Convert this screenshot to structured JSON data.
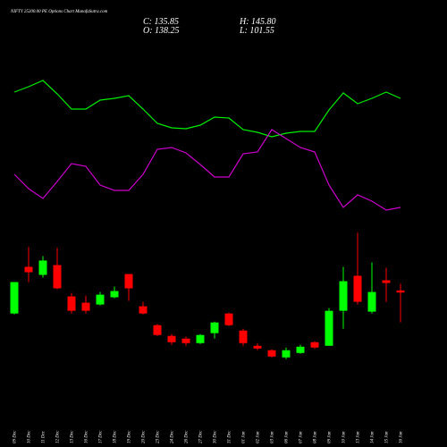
{
  "chart_data": {
    "type": "candlestick",
    "title": "NIFTY 25200.00 PE Options Chart MunafaSutra.com",
    "ohlc_labels": {
      "close": "C: 135.85",
      "high": "H: 145.80",
      "open": "O: 138.25",
      "low": "L: 101.55"
    },
    "categories": [
      "09 Dec",
      "10 Dec",
      "11 Dec",
      "12 Dec",
      "13 Dec",
      "16 Dec",
      "17 Dec",
      "18 Dec",
      "19 Dec",
      "20 Dec",
      "23 Dec",
      "24 Dec",
      "26 Dec",
      "27 Dec",
      "30 Dec",
      "31 Dec",
      "01 Jan",
      "02 Jan",
      "03 Jan",
      "06 Jan",
      "07 Jan",
      "08 Jan",
      "09 Jan",
      "10 Jan",
      "13 Jan",
      "14 Jan",
      "15 Jan",
      "16 Jan"
    ],
    "open": [
      111.8,
      165.4,
      156.1,
      167.4,
      131.4,
      124.2,
      122.1,
      130.4,
      157.1,
      120.1,
      98.4,
      86.1,
      83.0,
      77.8,
      89.2,
      111.8,
      92.2,
      74.7,
      69.6,
      61.4,
      66.5,
      78.8,
      74.7,
      114.9,
      155.1,
      113.9,
      149.9,
      138.25
    ],
    "high": [
      147.9,
      188.0,
      177.7,
      187.0,
      135.5,
      132.4,
      136.5,
      142.7,
      157.1,
      125.2,
      99.5,
      88.1,
      85.0,
      88.1,
      102.5,
      112.8,
      94.3,
      77.8,
      70.6,
      72.7,
      75.8,
      79.9,
      118.0,
      165.4,
      204.5,
      170.5,
      164.3,
      145.8
    ],
    "low": [
      110.8,
      147.9,
      153.0,
      139.6,
      111.8,
      111.8,
      121.1,
      129.3,
      126.2,
      110.8,
      86.1,
      75.8,
      74.7,
      76.8,
      83.0,
      97.4,
      74.7,
      69.6,
      61.4,
      59.3,
      65.5,
      71.6,
      74.7,
      94.3,
      122.1,
      111.8,
      125.2,
      101.55
    ],
    "close": [
      147.9,
      159.2,
      172.6,
      140.7,
      114.9,
      114.9,
      133.4,
      137.6,
      140.7,
      111.8,
      87.1,
      78.8,
      77.8,
      87.1,
      101.5,
      98.4,
      77.8,
      71.6,
      62.4,
      69.6,
      73.7,
      72.7,
      114.9,
      148.9,
      125.2,
      136.5,
      146.8,
      135.85
    ],
    "up_color": "#00ff00",
    "down_color": "#ff0000",
    "ylim": [
      55,
      210
    ],
    "y2lim": [
      0,
      100
    ],
    "indicators": [
      {
        "color": "#00ee00",
        "values": [
          73.5,
          76.5,
          80,
          72.5,
          64,
          64,
          69,
          70,
          71.5,
          64,
          56,
          53.5,
          53,
          55,
          59.5,
          59,
          52.5,
          51,
          48.5,
          50.5,
          51.5,
          51.5,
          63.5,
          73,
          67,
          70,
          73.5,
          70
        ]
      },
      {
        "color": "#cc00cc",
        "values": [
          27.5,
          19.5,
          14,
          23.5,
          33.5,
          32,
          21.5,
          18.5,
          18.5,
          27.5,
          41.5,
          42.5,
          39.5,
          33,
          26,
          26,
          39,
          40,
          52.5,
          47.5,
          42.5,
          40,
          21.5,
          9,
          16,
          12.5,
          7.5,
          9
        ]
      }
    ]
  }
}
